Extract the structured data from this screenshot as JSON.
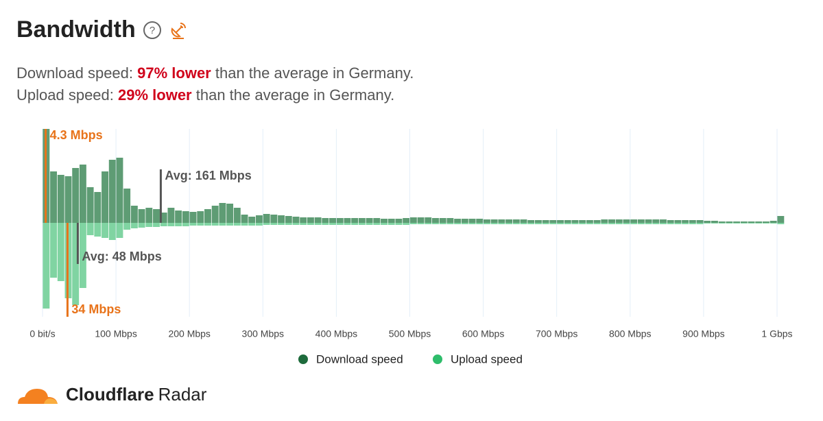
{
  "header": {
    "title": "Bandwidth",
    "lines": [
      {
        "label": "Download speed:",
        "highlight": "97% lower",
        "rest": "than the average in Germany."
      },
      {
        "label": "Upload speed:",
        "highlight": "29% lower",
        "rest": "than the average in Germany."
      }
    ]
  },
  "chart_data": {
    "type": "mirrored-histogram",
    "bins": [
      0,
      10,
      20,
      30,
      40,
      50,
      60,
      70,
      80,
      90,
      100,
      110,
      120,
      130,
      140,
      150,
      160,
      170,
      180,
      190,
      200,
      210,
      220,
      230,
      240,
      250,
      260,
      270,
      280,
      290,
      300,
      310,
      320,
      330,
      340,
      350,
      360,
      370,
      380,
      390,
      400,
      410,
      420,
      430,
      440,
      450,
      460,
      470,
      480,
      490,
      500,
      510,
      520,
      530,
      540,
      550,
      560,
      570,
      580,
      590,
      600,
      610,
      620,
      630,
      640,
      650,
      660,
      670,
      680,
      690,
      700,
      710,
      720,
      730,
      740,
      750,
      760,
      770,
      780,
      790,
      800,
      810,
      820,
      830,
      840,
      850,
      860,
      870,
      880,
      890,
      900,
      910,
      920,
      930,
      940,
      950,
      960,
      970,
      980,
      990,
      1000,
      1010
    ],
    "series": [
      {
        "name": "Download speed",
        "color": "#1e6b3c",
        "bar_color": "#5e9c74",
        "direction": "up",
        "values": [
          137,
          75,
          70,
          68,
          80,
          85,
          52,
          45,
          75,
          92,
          95,
          50,
          25,
          20,
          22,
          20,
          15,
          22,
          18,
          17,
          16,
          17,
          20,
          25,
          29,
          28,
          22,
          12,
          9,
          11,
          13,
          12,
          11,
          10,
          9,
          8,
          8,
          8,
          7,
          7,
          7,
          7,
          7,
          7,
          7,
          7,
          6,
          6,
          6,
          7,
          8,
          8,
          8,
          7,
          7,
          7,
          6,
          6,
          6,
          6,
          5,
          5,
          5,
          5,
          5,
          5,
          4,
          4,
          4,
          4,
          4,
          4,
          4,
          4,
          4,
          4,
          5,
          5,
          5,
          5,
          5,
          5,
          5,
          5,
          5,
          4,
          4,
          4,
          4,
          4,
          3,
          3,
          2,
          2,
          2,
          2,
          2,
          2,
          2,
          3,
          10
        ]
      },
      {
        "name": "Upload speed",
        "color": "#2ebd6b",
        "bar_color": "#80d4a2",
        "direction": "down",
        "values": [
          125,
          80,
          85,
          110,
          120,
          95,
          18,
          20,
          22,
          25,
          22,
          10,
          8,
          7,
          6,
          6,
          5,
          5,
          5,
          5,
          4,
          4,
          4,
          4,
          4,
          4,
          4,
          4,
          4,
          4,
          3,
          3,
          3,
          3,
          3,
          3,
          3,
          3,
          3,
          3,
          3,
          3,
          3,
          3,
          3,
          3,
          3,
          3,
          3,
          3,
          2,
          2,
          2,
          2,
          2,
          2,
          2,
          2,
          2,
          2,
          2,
          2,
          2,
          2,
          2,
          2,
          2,
          2,
          2,
          2,
          2,
          2,
          2,
          2,
          2,
          2,
          2,
          2,
          2,
          2,
          2,
          2,
          2,
          2,
          2,
          2,
          2,
          2,
          2,
          2,
          1,
          1,
          1,
          1,
          1,
          1,
          1,
          1,
          1,
          1,
          2
        ]
      }
    ],
    "annotations": [
      {
        "label": "4.3 Mbps",
        "value": 4.3,
        "series": 0,
        "color": "#e8731a"
      },
      {
        "label": "Avg: 161 Mbps",
        "value": 161,
        "series": 0,
        "color": "#555555"
      },
      {
        "label": "Avg: 48 Mbps",
        "value": 48,
        "series": 1,
        "color": "#555555"
      },
      {
        "label": "34 Mbps",
        "value": 34,
        "series": 1,
        "color": "#e8731a"
      }
    ],
    "xlim": [
      0,
      1000
    ],
    "xticks": [
      {
        "value": 0,
        "label": "0 bit/s"
      },
      {
        "value": 100,
        "label": "100 Mbps"
      },
      {
        "value": 200,
        "label": "200 Mbps"
      },
      {
        "value": 300,
        "label": "300 Mbps"
      },
      {
        "value": 400,
        "label": "400 Mbps"
      },
      {
        "value": 500,
        "label": "500 Mbps"
      },
      {
        "value": 600,
        "label": "600 Mbps"
      },
      {
        "value": 700,
        "label": "700 Mbps"
      },
      {
        "value": 800,
        "label": "800 Mbps"
      },
      {
        "value": 900,
        "label": "900 Mbps"
      },
      {
        "value": 1000,
        "label": "1 Gbps"
      }
    ],
    "grid": true
  },
  "footer": {
    "brand": "Cloudflare",
    "product": "Radar"
  }
}
